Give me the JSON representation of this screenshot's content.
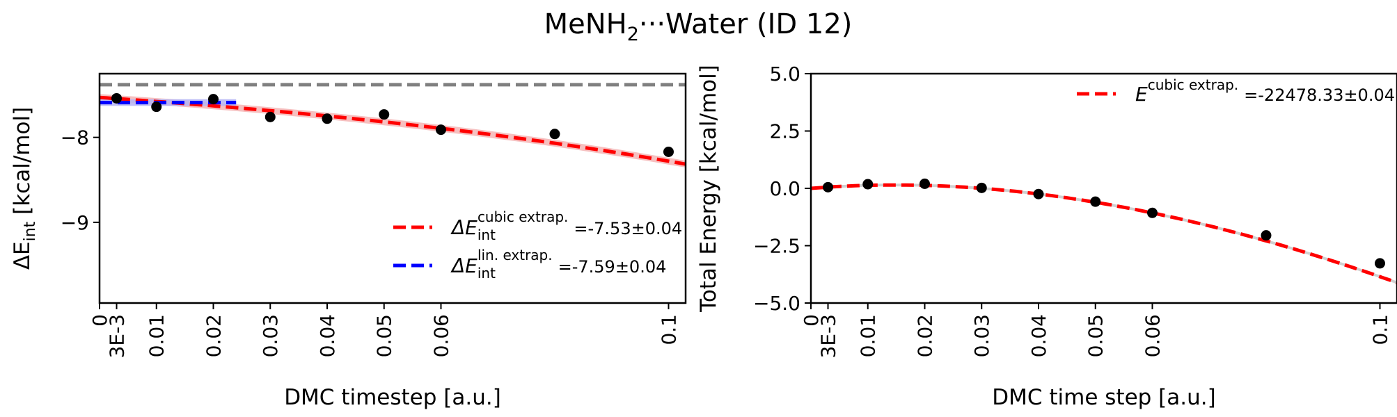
{
  "title": {
    "main": "MeNH",
    "sub": "2",
    "rest": "···Water (ID 12)"
  },
  "chart_data": [
    {
      "type": "scatter",
      "xlabel": "DMC timestep [a.u.]",
      "ylabel": {
        "prefix": "ΔE",
        "sub": "int",
        "suffix": " [kcal/mol]"
      },
      "xlim": [
        0,
        0.103
      ],
      "ylim": [
        -9.95,
        -7.25
      ],
      "xticks": [
        {
          "v": 0,
          "label": "0"
        },
        {
          "v": 0.003,
          "label": "3E-3"
        },
        {
          "v": 0.01,
          "label": "0.01"
        },
        {
          "v": 0.02,
          "label": "0.02"
        },
        {
          "v": 0.03,
          "label": "0.03"
        },
        {
          "v": 0.04,
          "label": "0.04"
        },
        {
          "v": 0.05,
          "label": "0.05"
        },
        {
          "v": 0.06,
          "label": "0.06"
        },
        {
          "v": 0.1,
          "label": "0.1"
        }
      ],
      "yticks": [
        {
          "v": -8,
          "label": "−8"
        },
        {
          "v": -9,
          "label": "−9"
        }
      ],
      "reference_line": {
        "y": -7.38,
        "color": "#808080"
      },
      "points": {
        "x": [
          0.003,
          0.01,
          0.02,
          0.03,
          0.04,
          0.05,
          0.06,
          0.08,
          0.1
        ],
        "y": [
          -7.54,
          -7.64,
          -7.55,
          -7.76,
          -7.78,
          -7.73,
          -7.91,
          -7.96,
          -8.17
        ],
        "color": "#000000"
      },
      "fits": [
        {
          "kind": "cubic",
          "coef": [
            -7.53,
            -4.5,
            -20,
            -100
          ],
          "x_range": [
            0,
            0.103
          ],
          "color": "#ff0000",
          "band": 0.04,
          "band_color": "#f5b5b5"
        },
        {
          "kind": "linear",
          "coef": [
            -7.59,
            0
          ],
          "x_range": [
            0,
            0.024
          ],
          "color": "#0000ff",
          "band": 0.04,
          "band_color": "#b5b5f5"
        }
      ],
      "legend": {
        "position": "lower-right",
        "entries": [
          {
            "color": "#ff0000",
            "prefix": "ΔE",
            "sub": "int",
            "sup": "cubic extrap.",
            "value": "=-7.53±0.04"
          },
          {
            "color": "#0000ff",
            "prefix": "ΔE",
            "sub": "int",
            "sup": "lin. extrap.",
            "value": "=-7.59±0.04"
          }
        ]
      }
    },
    {
      "type": "scatter",
      "xlabel": "DMC time step [a.u.]",
      "ylabel": {
        "prefix": "Total Energy [kcal/mol]",
        "sub": "",
        "suffix": ""
      },
      "xlim": [
        0,
        0.103
      ],
      "ylim": [
        -5,
        5
      ],
      "xticks": [
        {
          "v": 0,
          "label": "0"
        },
        {
          "v": 0.003,
          "label": "3E-3"
        },
        {
          "v": 0.01,
          "label": "0.01"
        },
        {
          "v": 0.02,
          "label": "0.02"
        },
        {
          "v": 0.03,
          "label": "0.03"
        },
        {
          "v": 0.04,
          "label": "0.04"
        },
        {
          "v": 0.05,
          "label": "0.05"
        },
        {
          "v": 0.06,
          "label": "0.06"
        },
        {
          "v": 0.1,
          "label": "0.1"
        }
      ],
      "yticks": [
        {
          "v": 5,
          "label": "5.0"
        },
        {
          "v": 2.5,
          "label": "2.5"
        },
        {
          "v": 0,
          "label": "0.0"
        },
        {
          "v": -2.5,
          "label": "−2.5"
        },
        {
          "v": -5,
          "label": "−5.0"
        }
      ],
      "points": {
        "x": [
          0.003,
          0.01,
          0.02,
          0.03,
          0.04,
          0.05,
          0.06,
          0.08,
          0.1
        ],
        "y": [
          0.05,
          0.18,
          0.2,
          0.02,
          -0.25,
          -0.58,
          -1.07,
          -2.05,
          -3.27
        ],
        "color": "#000000"
      },
      "fits": [
        {
          "kind": "cubic",
          "coef": [
            0,
            20,
            -700,
            1150
          ],
          "x_range": [
            0,
            0.103
          ],
          "color": "#ff0000",
          "band": 0.06,
          "band_color": "#c8c8c8"
        }
      ],
      "legend": {
        "position": "upper-right",
        "entries": [
          {
            "color": "#ff0000",
            "prefix": "E",
            "sub": "",
            "sup": "cubic extrap.",
            "value": "=-22478.33±0.04"
          }
        ]
      }
    }
  ]
}
